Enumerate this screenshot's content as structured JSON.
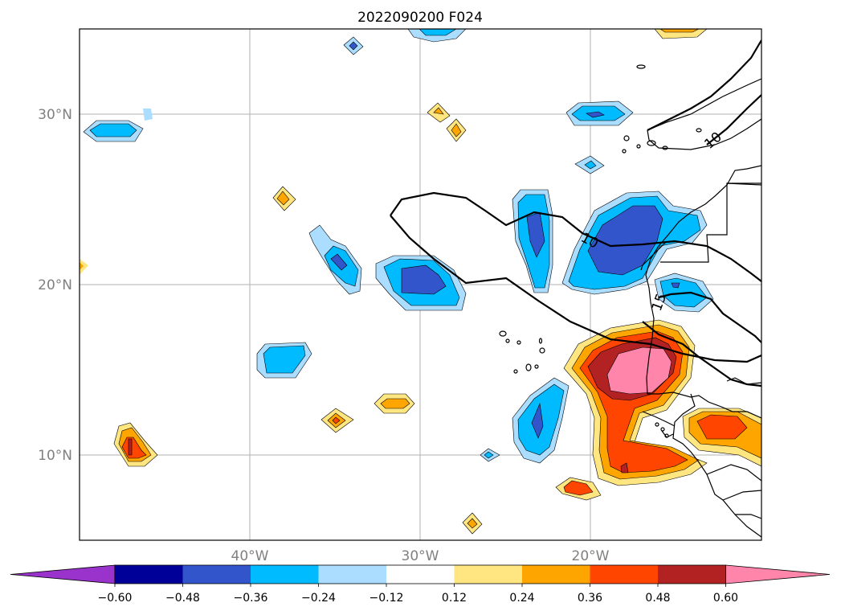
{
  "title": "2022090200 F024",
  "lat_labels": [
    "30°N",
    "20°N",
    "10°N"
  ],
  "lon_labels": [
    "40°W",
    "30°W",
    "20°W"
  ],
  "contour_labels": [
    "10",
    "10",
    "15"
  ],
  "colorbar": {
    "ticks": [
      "−0.60",
      "−0.48",
      "−0.36",
      "−0.24",
      "−0.12",
      "0.12",
      "0.24",
      "0.36",
      "0.48",
      "0.60"
    ],
    "colors": [
      "#9933cc",
      "#000099",
      "#3355cc",
      "#00bbff",
      "#aaddff",
      "#ffffff",
      "#ffe680",
      "#ffa500",
      "#ff4500",
      "#b22222",
      "#ff85aa"
    ]
  }
}
